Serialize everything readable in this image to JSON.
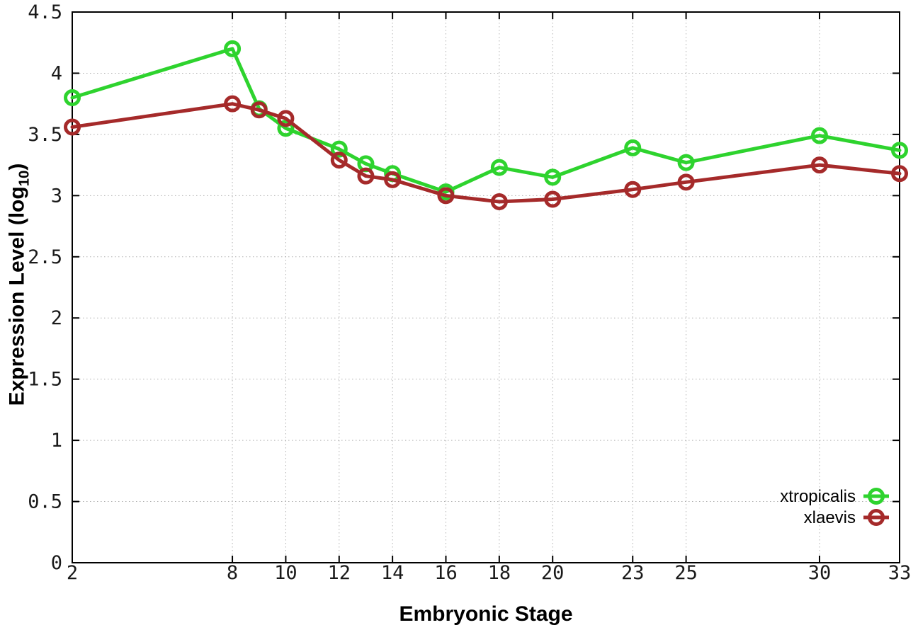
{
  "chart_data": {
    "type": "line",
    "title": "",
    "xlabel": "Embryonic Stage",
    "ylabel_main": "Expression Level (log",
    "ylabel_sub": "10",
    "ylabel_close": ")",
    "xlim": [
      2,
      33
    ],
    "ylim": [
      0,
      4.5
    ],
    "grid": true,
    "legend_position": "bottom-right",
    "x_ticks": [
      2,
      8,
      10,
      12,
      14,
      16,
      18,
      20,
      23,
      25,
      30,
      33
    ],
    "x_tick_labels": [
      "2",
      "8",
      "10",
      "12",
      "14",
      "16",
      "18",
      "20",
      "23",
      "25",
      "30",
      "33"
    ],
    "y_ticks": [
      0,
      0.5,
      1,
      1.5,
      2,
      2.5,
      3,
      3.5,
      4,
      4.5
    ],
    "y_tick_labels": [
      "0",
      "0.5",
      "1",
      "1.5",
      "2",
      "2.5",
      "3",
      "3.5",
      "4",
      "4.5"
    ],
    "x": [
      2,
      8,
      9,
      10,
      12,
      13,
      14,
      16,
      18,
      20,
      23,
      25,
      30,
      33
    ],
    "series": [
      {
        "name": "xtropicalis",
        "color": "#2ed32e",
        "values": [
          3.8,
          4.2,
          3.71,
          3.55,
          3.38,
          3.26,
          3.18,
          3.03,
          3.23,
          3.15,
          3.39,
          3.27,
          3.49,
          3.37
        ]
      },
      {
        "name": "xlaevis",
        "color": "#a52a2a",
        "values": [
          3.56,
          3.75,
          3.7,
          3.63,
          3.29,
          3.16,
          3.13,
          3.0,
          2.95,
          2.97,
          3.05,
          3.11,
          3.25,
          3.18
        ]
      }
    ],
    "style": {
      "grid_color": "#b0b0b0",
      "border_color": "#000000",
      "tick_text_color": "#1a1a1a",
      "line_width": 5,
      "marker_radius": 9.5,
      "marker_stroke": 5
    }
  }
}
